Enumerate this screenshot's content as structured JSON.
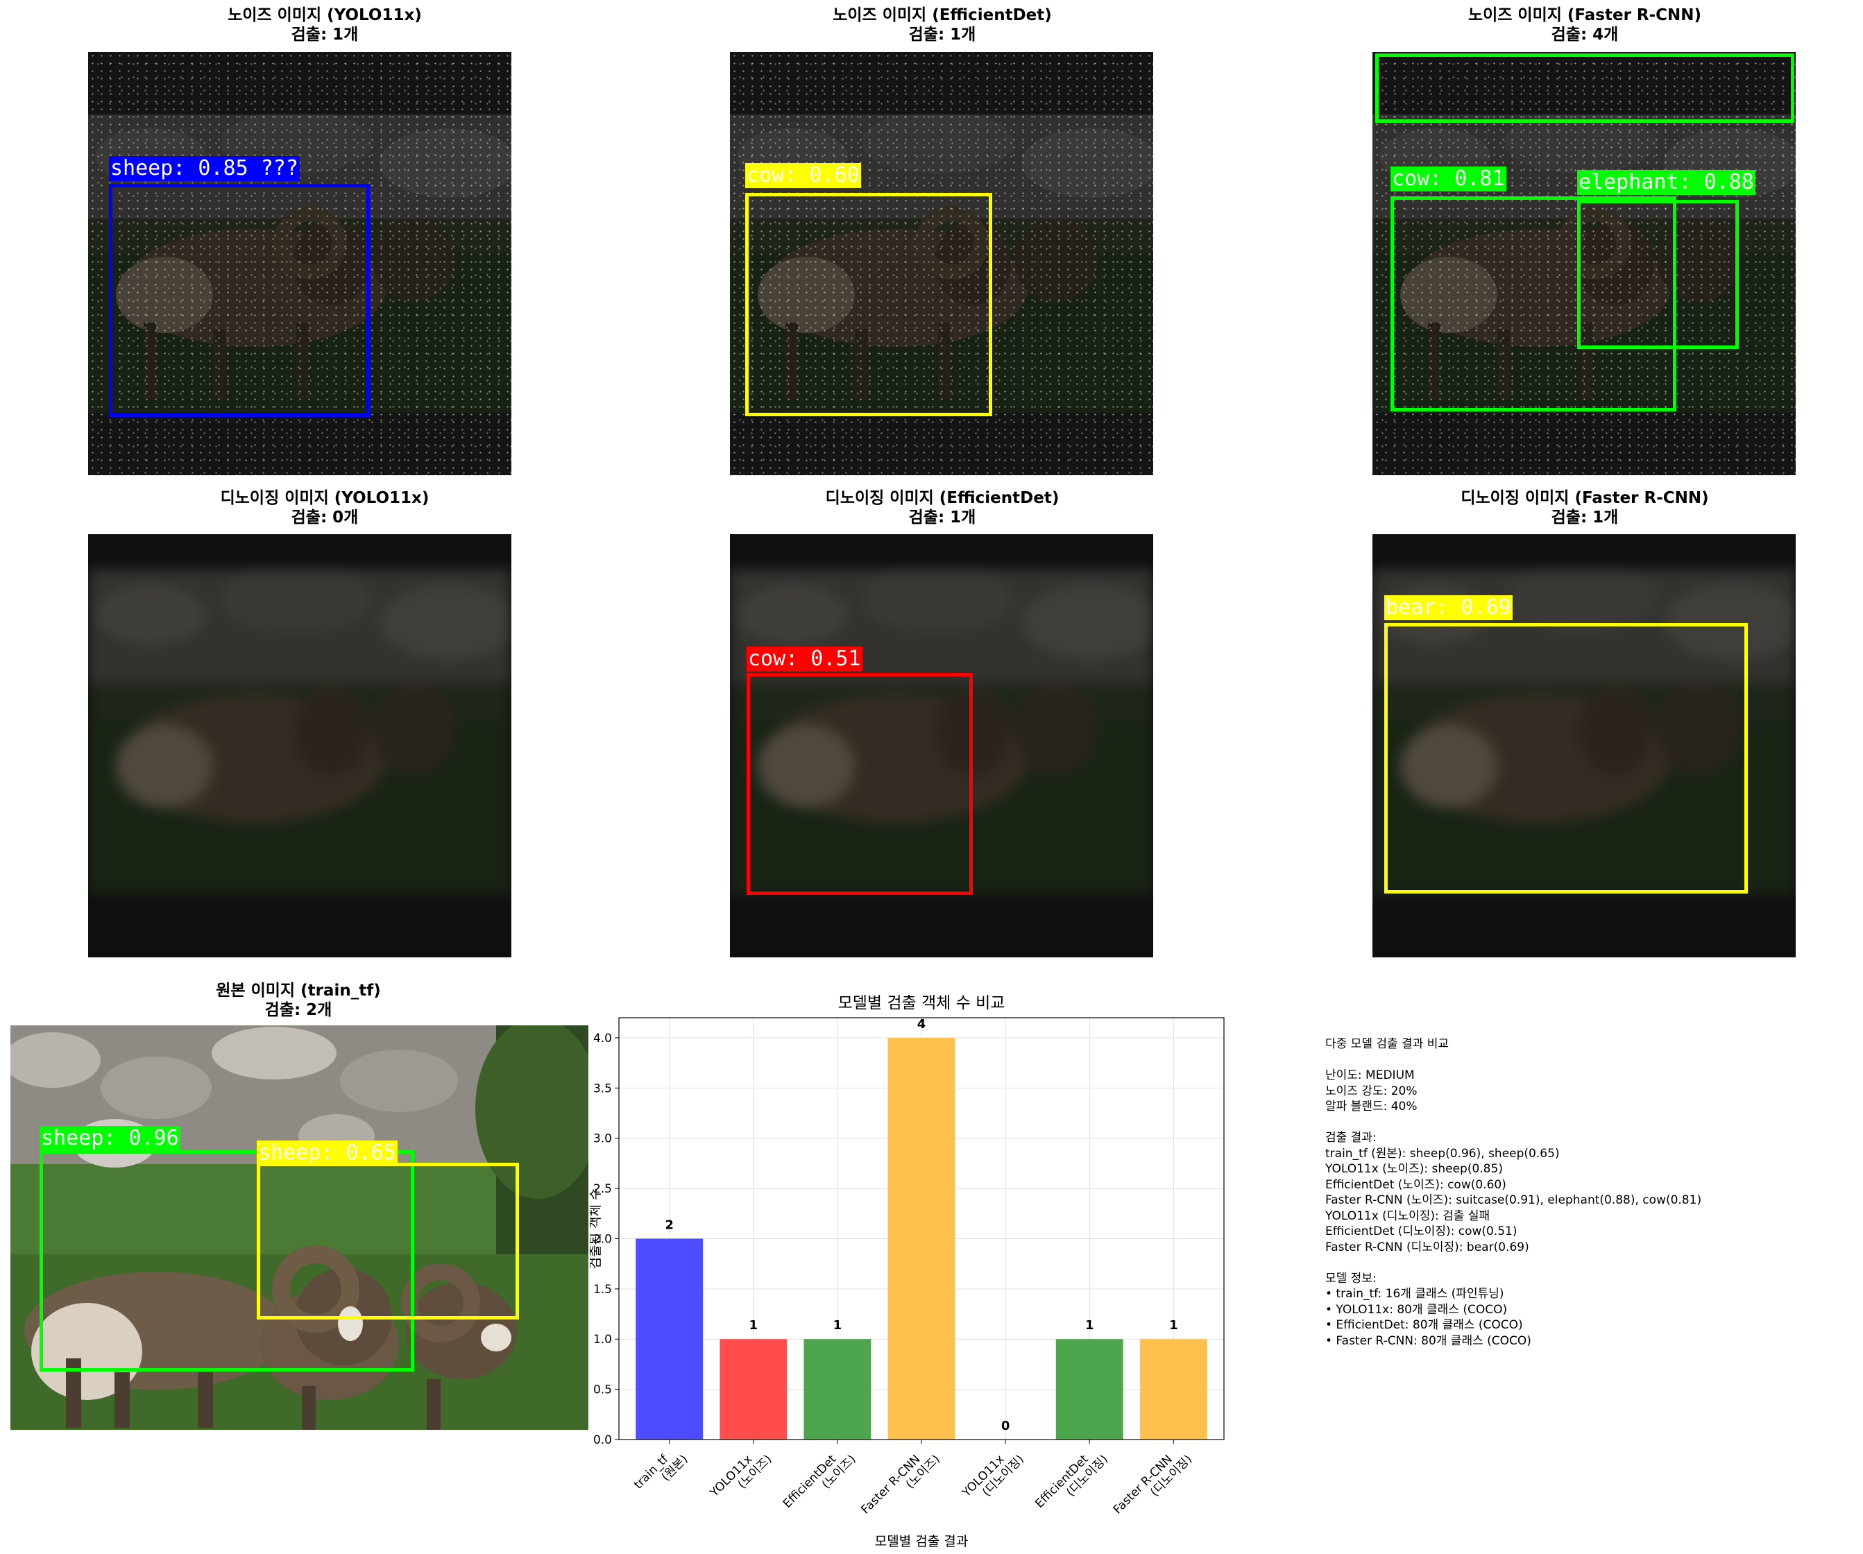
{
  "panels": [
    {
      "title": "노이즈 이미지 (YOLO11x)",
      "count": "검출: 1개",
      "boxes": [
        {
          "label": "sheep: 0.85 ???",
          "color": "#0000ff",
          "text_color": "#ffffff"
        }
      ]
    },
    {
      "title": "노이즈 이미지 (EfficientDet)",
      "count": "검출: 1개",
      "boxes": [
        {
          "label": "cow: 0.60",
          "color": "#ffff00",
          "text_color": "#ffffff"
        }
      ]
    },
    {
      "title": "노이즈 이미지 (Faster R-CNN)",
      "count": "검출: 4개",
      "boxes": [
        {
          "label": "",
          "color": "#00ff00",
          "text_color": "#ffffff"
        },
        {
          "label": "cow: 0.81",
          "color": "#00ff00",
          "text_color": "#ffffff"
        },
        {
          "label": "elephant: 0.88",
          "color": "#00ff00",
          "text_color": "#ffffff"
        }
      ]
    },
    {
      "title": "디노이징 이미지 (YOLO11x)",
      "count": "검출: 0개",
      "boxes": []
    },
    {
      "title": "디노이징 이미지 (EfficientDet)",
      "count": "검출: 1개",
      "boxes": [
        {
          "label": "cow: 0.51",
          "color": "#ff0000",
          "text_color": "#ffffff"
        }
      ]
    },
    {
      "title": "디노이징 이미지 (Faster R-CNN)",
      "count": "검출: 1개",
      "boxes": [
        {
          "label": "bear: 0.69",
          "color": "#ffff00",
          "text_color": "#ffffff"
        }
      ]
    },
    {
      "title": "원본 이미지 (train_tf)",
      "count": "검출: 2개",
      "boxes": [
        {
          "label": "sheep: 0.96",
          "color": "#00ff00",
          "text_color": "#ffffff"
        },
        {
          "label": "sheep: 0.65",
          "color": "#ffff00",
          "text_color": "#ffffff"
        }
      ]
    }
  ],
  "chart_data": {
    "type": "bar",
    "title": "모델별 검출 객체 수 비교",
    "xlabel": "모델별 검출 결과",
    "ylabel": "검출된 객체 수",
    "categories": [
      "train_tf\n(원본)",
      "YOLO11x\n(노이즈)",
      "EfficientDet\n(노이즈)",
      "Faster R-CNN\n(노이즈)",
      "YOLO11x\n(디노이징)",
      "EfficientDet\n(디노이징)",
      "Faster R-CNN\n(디노이징)"
    ],
    "values": [
      2,
      1,
      1,
      4,
      0,
      1,
      1
    ],
    "value_labels": [
      "2",
      "1",
      "1",
      "4",
      "0",
      "1",
      "1"
    ],
    "colors": [
      "#4d4dff",
      "#ff4d4d",
      "#4da64d",
      "#ffc04d",
      "#ff4d4d",
      "#4da64d",
      "#ffc04d"
    ],
    "ylim": [
      0,
      4.2
    ],
    "yticks": [
      "0.0",
      "0.5",
      "1.0",
      "1.5",
      "2.0",
      "2.5",
      "3.0",
      "3.5",
      "4.0"
    ],
    "grid": true
  },
  "info_lines": [
    "다중 모델 검출 결과 비교",
    "",
    "난이도: MEDIUM",
    "노이즈 강도: 20%",
    "알파 블랜드: 40%",
    "",
    "검출 결과:",
    "train_tf (원본): sheep(0.96), sheep(0.65)",
    "YOLO11x (노이즈): sheep(0.85)",
    "EfficientDet (노이즈): cow(0.60)",
    "Faster R-CNN (노이즈): suitcase(0.91), elephant(0.88), cow(0.81)",
    "YOLO11x (디노이징): 검출 실패",
    "EfficientDet (디노이징): cow(0.51)",
    "Faster R-CNN (디노이징): bear(0.69)",
    "",
    "모델 정보:",
    "• train_tf: 16개 클래스 (파인튜닝)",
    "• YOLO11x: 80개 클래스 (COCO)",
    "• EfficientDet: 80개 클래스 (COCO)",
    "• Faster R-CNN: 80개 클래스 (COCO)"
  ]
}
